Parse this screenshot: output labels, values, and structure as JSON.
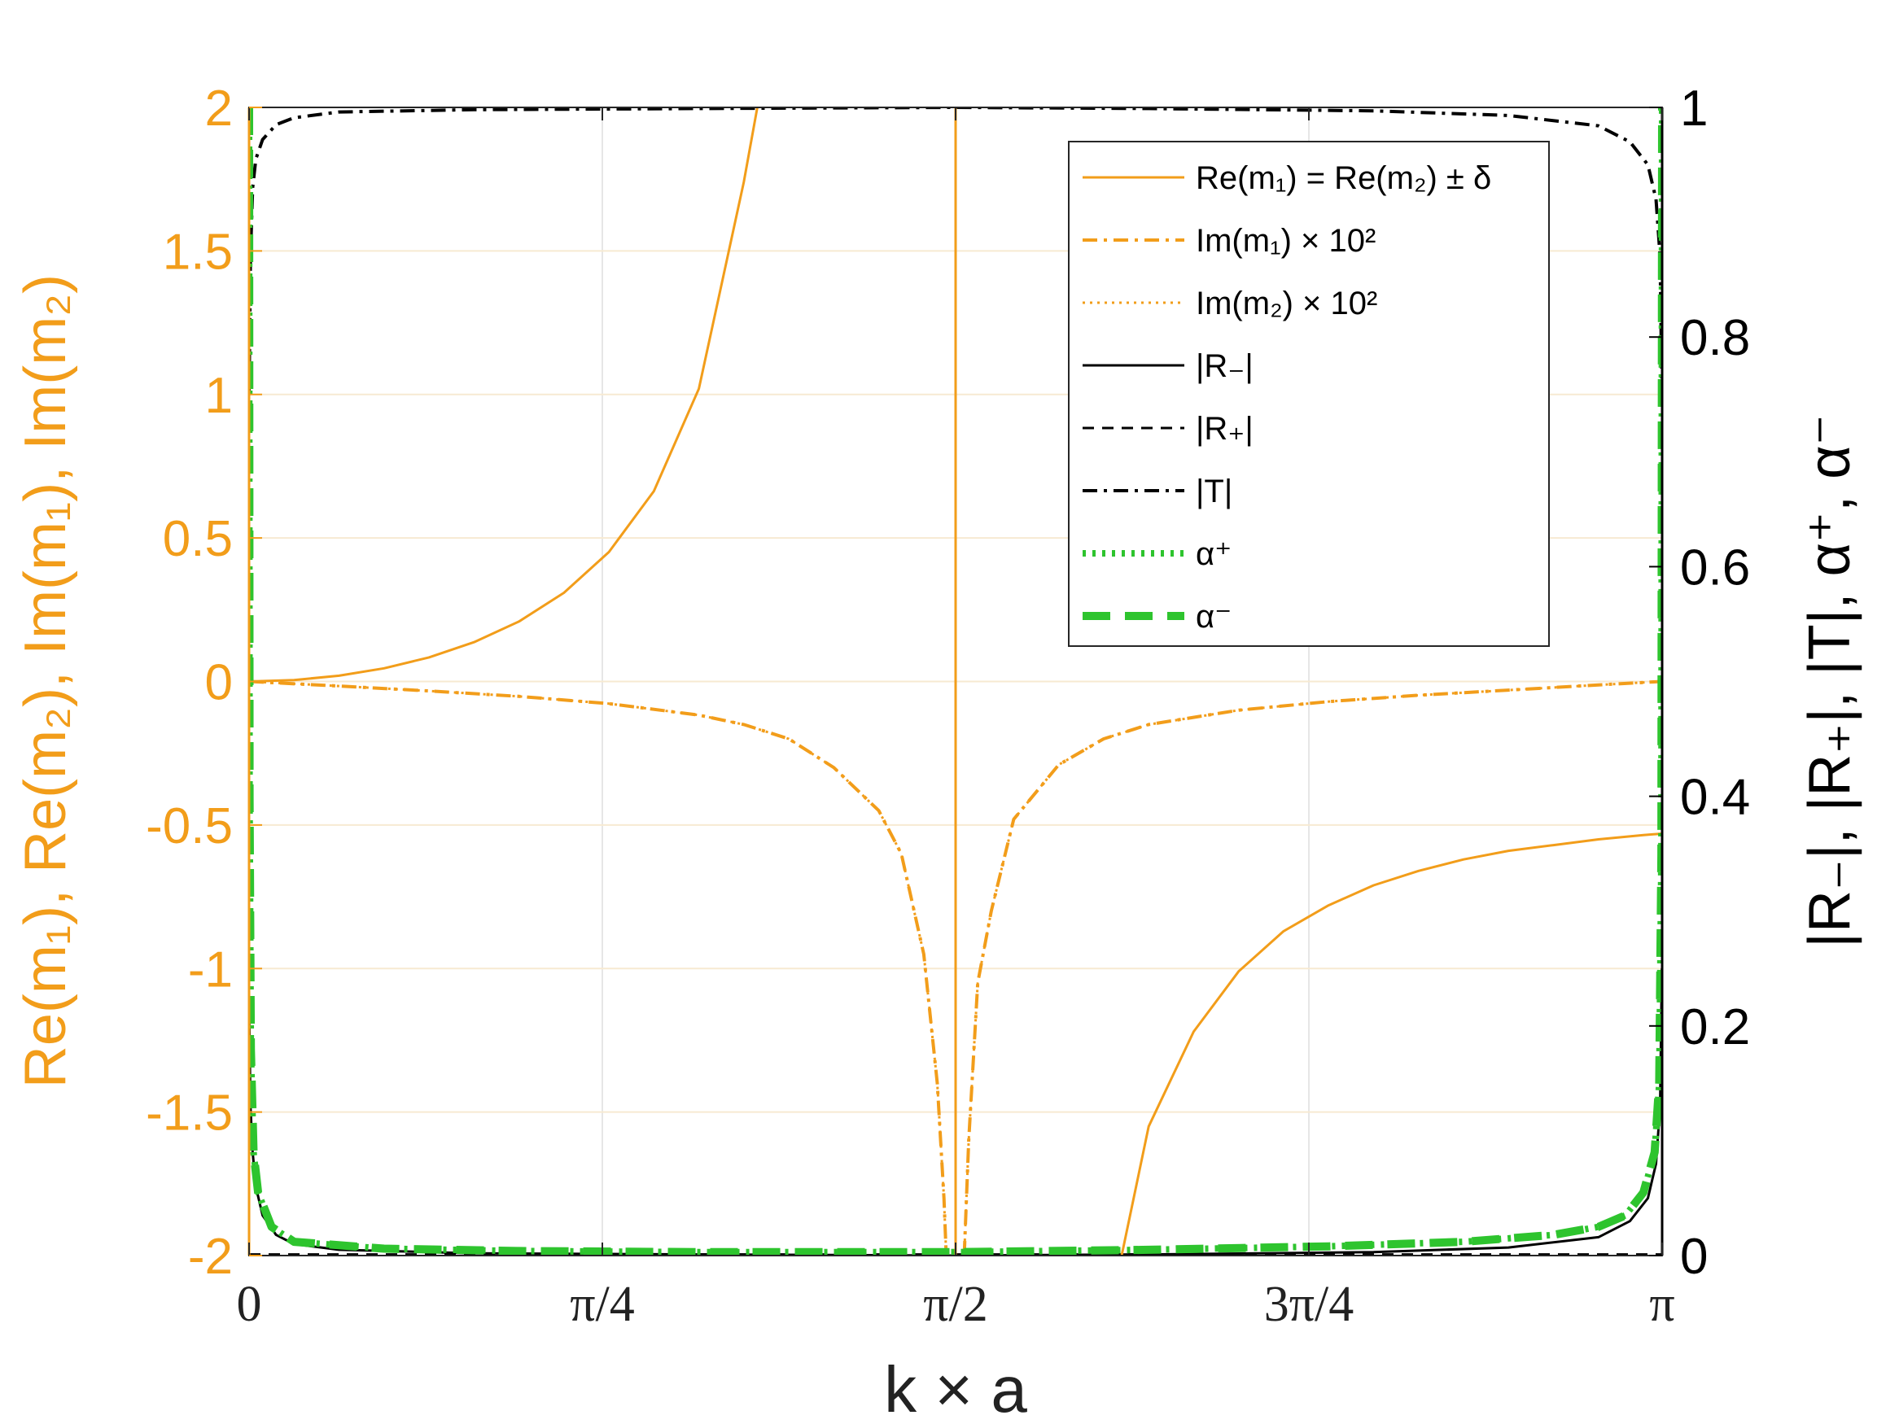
{
  "chart_data": {
    "type": "line",
    "xlabel": "k × a",
    "ylabel_left": "Re(m₁), Re(m₂), Im(m₁), Im(m₂)",
    "ylabel_right": "|R₋|, |R₊|, |T|, α⁺, α⁻",
    "xlim": [
      0,
      3.14159
    ],
    "ylim_left": [
      -2,
      2
    ],
    "ylim_right": [
      0,
      1
    ],
    "grid": true,
    "legend_placement": "top-right",
    "x_ticks": [
      {
        "value": 0,
        "label": "0"
      },
      {
        "value": 0.7854,
        "label": "π/4"
      },
      {
        "value": 1.5708,
        "label": "π/2"
      },
      {
        "value": 2.3562,
        "label": "3π/4"
      },
      {
        "value": 3.14159,
        "label": "π"
      }
    ],
    "y_ticks_left": [
      {
        "value": -2,
        "label": "-2"
      },
      {
        "value": -1.5,
        "label": "-1.5"
      },
      {
        "value": -1,
        "label": "-1"
      },
      {
        "value": -0.5,
        "label": "-0.5"
      },
      {
        "value": 0,
        "label": "0"
      },
      {
        "value": 0.5,
        "label": "0.5"
      },
      {
        "value": 1,
        "label": "1"
      },
      {
        "value": 1.5,
        "label": "1.5"
      },
      {
        "value": 2,
        "label": "2"
      }
    ],
    "y_ticks_right": [
      {
        "value": 0,
        "label": "0"
      },
      {
        "value": 0.2,
        "label": "0.2"
      },
      {
        "value": 0.4,
        "label": "0.4"
      },
      {
        "value": 0.6,
        "label": "0.6"
      },
      {
        "value": 0.8,
        "label": "0.8"
      },
      {
        "value": 1,
        "label": "1"
      }
    ],
    "series": [
      {
        "name": "Re(m₁) = Re(m₂) ± δ",
        "axis": "left",
        "color": "#f29d1a",
        "style": "solid",
        "segments": [
          [
            [
              0.0,
              0.0
            ],
            [
              0.1,
              0.005
            ],
            [
              0.2,
              0.02
            ],
            [
              0.3,
              0.046
            ],
            [
              0.4,
              0.084
            ],
            [
              0.5,
              0.137
            ],
            [
              0.6,
              0.209
            ],
            [
              0.7,
              0.309
            ],
            [
              0.8,
              0.451
            ],
            [
              0.9,
              0.663
            ],
            [
              1.0,
              1.02
            ],
            [
              1.1,
              1.74
            ],
            [
              1.13,
              2.0
            ]
          ],
          [
            [
              1.5708,
              -2
            ],
            [
              1.5708,
              2
            ]
          ],
          [
            [
              1.94,
              -2.0
            ],
            [
              2.0,
              -1.55
            ],
            [
              2.1,
              -1.22
            ],
            [
              2.2,
              -1.01
            ],
            [
              2.3,
              -0.87
            ],
            [
              2.4,
              -0.78
            ],
            [
              2.5,
              -0.71
            ],
            [
              2.6,
              -0.66
            ],
            [
              2.7,
              -0.62
            ],
            [
              2.8,
              -0.59
            ],
            [
              2.9,
              -0.57
            ],
            [
              3.0,
              -0.55
            ],
            [
              3.1,
              -0.535
            ],
            [
              3.14,
              -0.53
            ]
          ]
        ]
      },
      {
        "name": "Im(m₁) × 10²",
        "axis": "left",
        "color": "#f29d1a",
        "style": "dash-dot",
        "segments": [
          [
            [
              0.0,
              0.0
            ],
            [
              0.2,
              -0.016
            ],
            [
              0.4,
              -0.033
            ],
            [
              0.6,
              -0.052
            ],
            [
              0.8,
              -0.077
            ],
            [
              1.0,
              -0.117
            ],
            [
              1.1,
              -0.15
            ],
            [
              1.2,
              -0.2
            ],
            [
              1.3,
              -0.3
            ],
            [
              1.4,
              -0.45
            ],
            [
              1.45,
              -0.6
            ],
            [
              1.5,
              -0.95
            ],
            [
              1.53,
              -1.4
            ],
            [
              1.545,
              -1.8
            ],
            [
              1.55,
              -2.0
            ]
          ],
          [
            [
              1.59,
              -2.0
            ],
            [
              1.6,
              -1.6
            ],
            [
              1.62,
              -1.05
            ],
            [
              1.65,
              -0.8
            ],
            [
              1.7,
              -0.48
            ],
            [
              1.8,
              -0.29
            ],
            [
              1.9,
              -0.2
            ],
            [
              2.0,
              -0.15
            ],
            [
              2.2,
              -0.1
            ],
            [
              2.4,
              -0.07
            ],
            [
              2.6,
              -0.048
            ],
            [
              2.8,
              -0.03
            ],
            [
              3.0,
              -0.012
            ],
            [
              3.14,
              0.0
            ]
          ]
        ]
      },
      {
        "name": "Im(m₂) × 10²",
        "axis": "left",
        "color": "#f29d1a",
        "style": "dotted",
        "segments": [
          [
            [
              0.0,
              0.0
            ],
            [
              0.2,
              -0.016
            ],
            [
              0.4,
              -0.033
            ],
            [
              0.6,
              -0.052
            ],
            [
              0.8,
              -0.077
            ],
            [
              1.0,
              -0.117
            ],
            [
              1.1,
              -0.15
            ],
            [
              1.2,
              -0.2
            ],
            [
              1.3,
              -0.3
            ],
            [
              1.4,
              -0.45
            ],
            [
              1.45,
              -0.6
            ],
            [
              1.5,
              -0.95
            ],
            [
              1.53,
              -1.4
            ],
            [
              1.545,
              -1.8
            ],
            [
              1.55,
              -2.0
            ]
          ],
          [
            [
              1.59,
              -2.0
            ],
            [
              1.6,
              -1.6
            ],
            [
              1.62,
              -1.05
            ],
            [
              1.65,
              -0.8
            ],
            [
              1.7,
              -0.48
            ],
            [
              1.8,
              -0.29
            ],
            [
              1.9,
              -0.2
            ],
            [
              2.0,
              -0.15
            ],
            [
              2.2,
              -0.1
            ],
            [
              2.4,
              -0.07
            ],
            [
              2.6,
              -0.048
            ],
            [
              2.8,
              -0.03
            ],
            [
              3.0,
              -0.012
            ],
            [
              3.14,
              0.0
            ]
          ]
        ]
      },
      {
        "name": "|R₋|",
        "axis": "right",
        "color": "#000000",
        "style": "solid",
        "segments": [
          [
            [
              0.0,
              0.22
            ],
            [
              0.003,
              0.13
            ],
            [
              0.008,
              0.09
            ],
            [
              0.015,
              0.06
            ],
            [
              0.03,
              0.035
            ],
            [
              0.06,
              0.018
            ],
            [
              0.1,
              0.01
            ],
            [
              0.2,
              0.005
            ],
            [
              0.5,
              0.002
            ],
            [
              1.0,
              0.001
            ],
            [
              1.5708,
              0.0
            ],
            [
              2.0,
              0.001
            ],
            [
              2.5,
              0.003
            ],
            [
              2.8,
              0.007
            ],
            [
              3.0,
              0.016
            ],
            [
              3.07,
              0.03
            ],
            [
              3.11,
              0.05
            ],
            [
              3.128,
              0.08
            ],
            [
              3.137,
              0.13
            ],
            [
              3.141,
              0.25
            ]
          ]
        ]
      },
      {
        "name": "|R₊|",
        "axis": "right",
        "color": "#000000",
        "style": "dashed",
        "segments": [
          [
            [
              0.0,
              0.001
            ],
            [
              3.14,
              0.001
            ]
          ]
        ]
      },
      {
        "name": "|T|",
        "axis": "right",
        "color": "#000000",
        "style": "dash-dot",
        "segments": [
          [
            [
              0.0,
              0.75
            ],
            [
              0.003,
              0.87
            ],
            [
              0.008,
              0.93
            ],
            [
              0.015,
              0.955
            ],
            [
              0.03,
              0.972
            ],
            [
              0.06,
              0.985
            ],
            [
              0.1,
              0.991
            ],
            [
              0.2,
              0.996
            ],
            [
              0.5,
              0.998
            ],
            [
              1.0,
              0.999
            ],
            [
              1.5708,
              1.0
            ],
            [
              2.0,
              0.999
            ],
            [
              2.5,
              0.997
            ],
            [
              2.8,
              0.993
            ],
            [
              3.0,
              0.984
            ],
            [
              3.07,
              0.97
            ],
            [
              3.11,
              0.95
            ],
            [
              3.128,
              0.92
            ],
            [
              3.137,
              0.87
            ],
            [
              3.141,
              0.75
            ]
          ]
        ]
      },
      {
        "name": "α⁺",
        "axis": "right",
        "color": "#2ec42e",
        "style": "dotted-thick",
        "segments": [
          [
            [
              0.0,
              1.0
            ],
            [
              0.001,
              0.4
            ],
            [
              0.004,
              0.18
            ],
            [
              0.01,
              0.09
            ],
            [
              0.02,
              0.055
            ],
            [
              0.05,
              0.025
            ],
            [
              0.1,
              0.012
            ],
            [
              0.3,
              0.006
            ],
            [
              0.6,
              0.004
            ],
            [
              1.0,
              0.003
            ],
            [
              1.5708,
              0.003
            ],
            [
              2.0,
              0.005
            ],
            [
              2.4,
              0.008
            ],
            [
              2.7,
              0.012
            ],
            [
              2.9,
              0.018
            ],
            [
              3.0,
              0.025
            ],
            [
              3.06,
              0.035
            ],
            [
              3.1,
              0.055
            ],
            [
              3.125,
              0.09
            ],
            [
              3.135,
              0.15
            ],
            [
              3.14,
              0.35
            ],
            [
              3.1416,
              1.0
            ]
          ]
        ]
      },
      {
        "name": "α⁻",
        "axis": "right",
        "color": "#2ec42e",
        "style": "dashed-thick",
        "segments": [
          [
            [
              0.0,
              1.0
            ],
            [
              0.001,
              0.4
            ],
            [
              0.004,
              0.18
            ],
            [
              0.01,
              0.09
            ],
            [
              0.02,
              0.055
            ],
            [
              0.05,
              0.025
            ],
            [
              0.1,
              0.012
            ],
            [
              0.3,
              0.006
            ],
            [
              0.6,
              0.004
            ],
            [
              1.0,
              0.003
            ],
            [
              1.5708,
              0.003
            ],
            [
              2.0,
              0.005
            ],
            [
              2.4,
              0.008
            ],
            [
              2.7,
              0.012
            ],
            [
              2.9,
              0.018
            ],
            [
              3.0,
              0.025
            ],
            [
              3.06,
              0.035
            ],
            [
              3.1,
              0.055
            ],
            [
              3.125,
              0.09
            ],
            [
              3.135,
              0.15
            ],
            [
              3.14,
              0.35
            ],
            [
              3.1416,
              1.0
            ]
          ]
        ]
      }
    ]
  }
}
